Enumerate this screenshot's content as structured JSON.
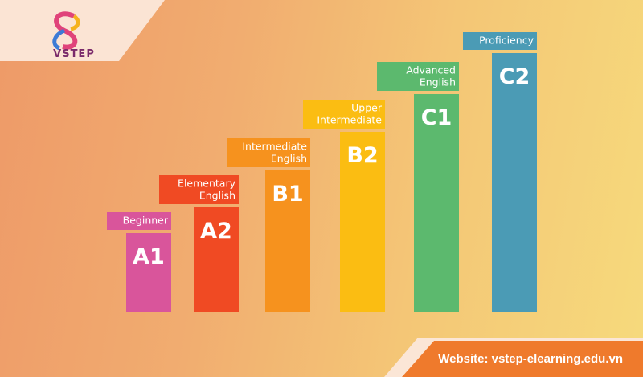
{
  "logo": {
    "text": "VSTEP"
  },
  "levels": [
    {
      "code": "A1",
      "label_lines": [
        "Beginner"
      ]
    },
    {
      "code": "A2",
      "label_lines": [
        "Elementary",
        "English"
      ]
    },
    {
      "code": "B1",
      "label_lines": [
        "Intermediate",
        "English"
      ]
    },
    {
      "code": "B2",
      "label_lines": [
        "Upper",
        "Intermediate"
      ]
    },
    {
      "code": "C1",
      "label_lines": [
        "Advanced",
        "English"
      ]
    },
    {
      "code": "C2",
      "label_lines": [
        "Proficiency"
      ]
    }
  ],
  "footer": {
    "website": "Website: vstep-elearning.edu.vn"
  }
}
